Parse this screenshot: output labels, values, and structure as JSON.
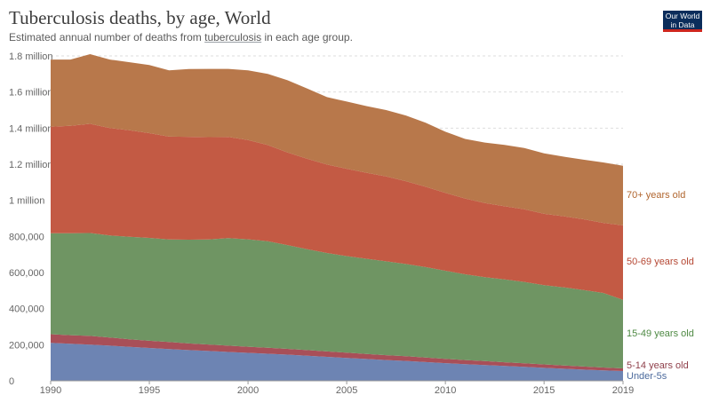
{
  "header": {
    "title": "Tuberculosis deaths, by age, World",
    "subtitle_before": "Estimated annual number of deaths from ",
    "subtitle_link": "tuberculosis",
    "subtitle_after": " in each age group.",
    "logo_line1": "Our World",
    "logo_line2": "in Data"
  },
  "chart_data": {
    "type": "area",
    "stacked": true,
    "title": "Tuberculosis deaths, by age, World",
    "subtitle": "Estimated annual number of deaths from tuberculosis in each age group.",
    "x": [
      1990,
      1991,
      1992,
      1993,
      1994,
      1995,
      1996,
      1997,
      1998,
      1999,
      2000,
      2001,
      2002,
      2003,
      2004,
      2005,
      2006,
      2007,
      2008,
      2009,
      2010,
      2011,
      2012,
      2013,
      2014,
      2015,
      2016,
      2017,
      2018,
      2019
    ],
    "xlim": [
      1990,
      2019
    ],
    "ylim": [
      0,
      1800000
    ],
    "x_ticks": [
      {
        "value": 1990,
        "label": "1990"
      },
      {
        "value": 1995,
        "label": "1995"
      },
      {
        "value": 2000,
        "label": "2000"
      },
      {
        "value": 2005,
        "label": "2005"
      },
      {
        "value": 2010,
        "label": "2010"
      },
      {
        "value": 2015,
        "label": "2015"
      },
      {
        "value": 2019,
        "label": "2019"
      }
    ],
    "y_ticks": [
      {
        "value": 0,
        "label": "0"
      },
      {
        "value": 200000,
        "label": "200,000"
      },
      {
        "value": 400000,
        "label": "400,000"
      },
      {
        "value": 600000,
        "label": "600,000"
      },
      {
        "value": 800000,
        "label": "800,000"
      },
      {
        "value": 1000000,
        "label": "1 million"
      },
      {
        "value": 1200000,
        "label": "1.2 million"
      },
      {
        "value": 1400000,
        "label": "1.4 million"
      },
      {
        "value": 1600000,
        "label": "1.6 million"
      },
      {
        "value": 1800000,
        "label": "1.8 million"
      }
    ],
    "grid": true,
    "legend": "inline labels at right end",
    "series": [
      {
        "name": "Under-5s",
        "color": "#6d84b3",
        "values": [
          210000,
          205000,
          200000,
          195000,
          188000,
          182000,
          176000,
          170000,
          165000,
          160000,
          155000,
          150000,
          145000,
          139000,
          133000,
          127000,
          121000,
          115000,
          110000,
          104000,
          98000,
          92000,
          87000,
          82000,
          77000,
          72000,
          67000,
          62000,
          58000,
          54000
        ]
      },
      {
        "name": "5-14 years old",
        "color": "#a84f58",
        "values": [
          48000,
          48000,
          49000,
          45000,
          42000,
          40000,
          39000,
          37000,
          36000,
          35000,
          34000,
          33000,
          32000,
          31000,
          30000,
          29000,
          28000,
          27000,
          26000,
          25000,
          24000,
          23000,
          22000,
          21000,
          20000,
          19000,
          18000,
          17000,
          16000,
          15000
        ]
      },
      {
        "name": "15-49 years old",
        "color": "#6f9563",
        "values": [
          560000,
          565000,
          570000,
          565000,
          568000,
          570000,
          568000,
          575000,
          582000,
          596000,
          595000,
          590000,
          575000,
          559000,
          545000,
          535000,
          527000,
          520000,
          511000,
          501000,
          488000,
          475000,
          465000,
          459000,
          451000,
          439000,
          433000,
          424000,
          413000,
          380000
        ]
      },
      {
        "name": "50-69 years old",
        "color": "#c35a44",
        "values": [
          590000,
          595000,
          605000,
          595000,
          590000,
          580000,
          570000,
          570000,
          567000,
          560000,
          550000,
          533000,
          513000,
          501000,
          490000,
          484000,
          477000,
          470000,
          459000,
          445000,
          431000,
          420000,
          411000,
          405000,
          402000,
          395000,
          394000,
          392000,
          388000,
          412000
        ]
      },
      {
        "name": "70+ years old",
        "color": "#b8784b",
        "values": [
          372000,
          367000,
          386000,
          380000,
          377000,
          378000,
          367000,
          375000,
          378000,
          377000,
          386000,
          394000,
          400000,
          389000,
          374000,
          372000,
          369000,
          368000,
          364000,
          355000,
          339000,
          330000,
          335000,
          340000,
          340000,
          335000,
          330000,
          330000,
          335000,
          330000
        ]
      }
    ]
  }
}
